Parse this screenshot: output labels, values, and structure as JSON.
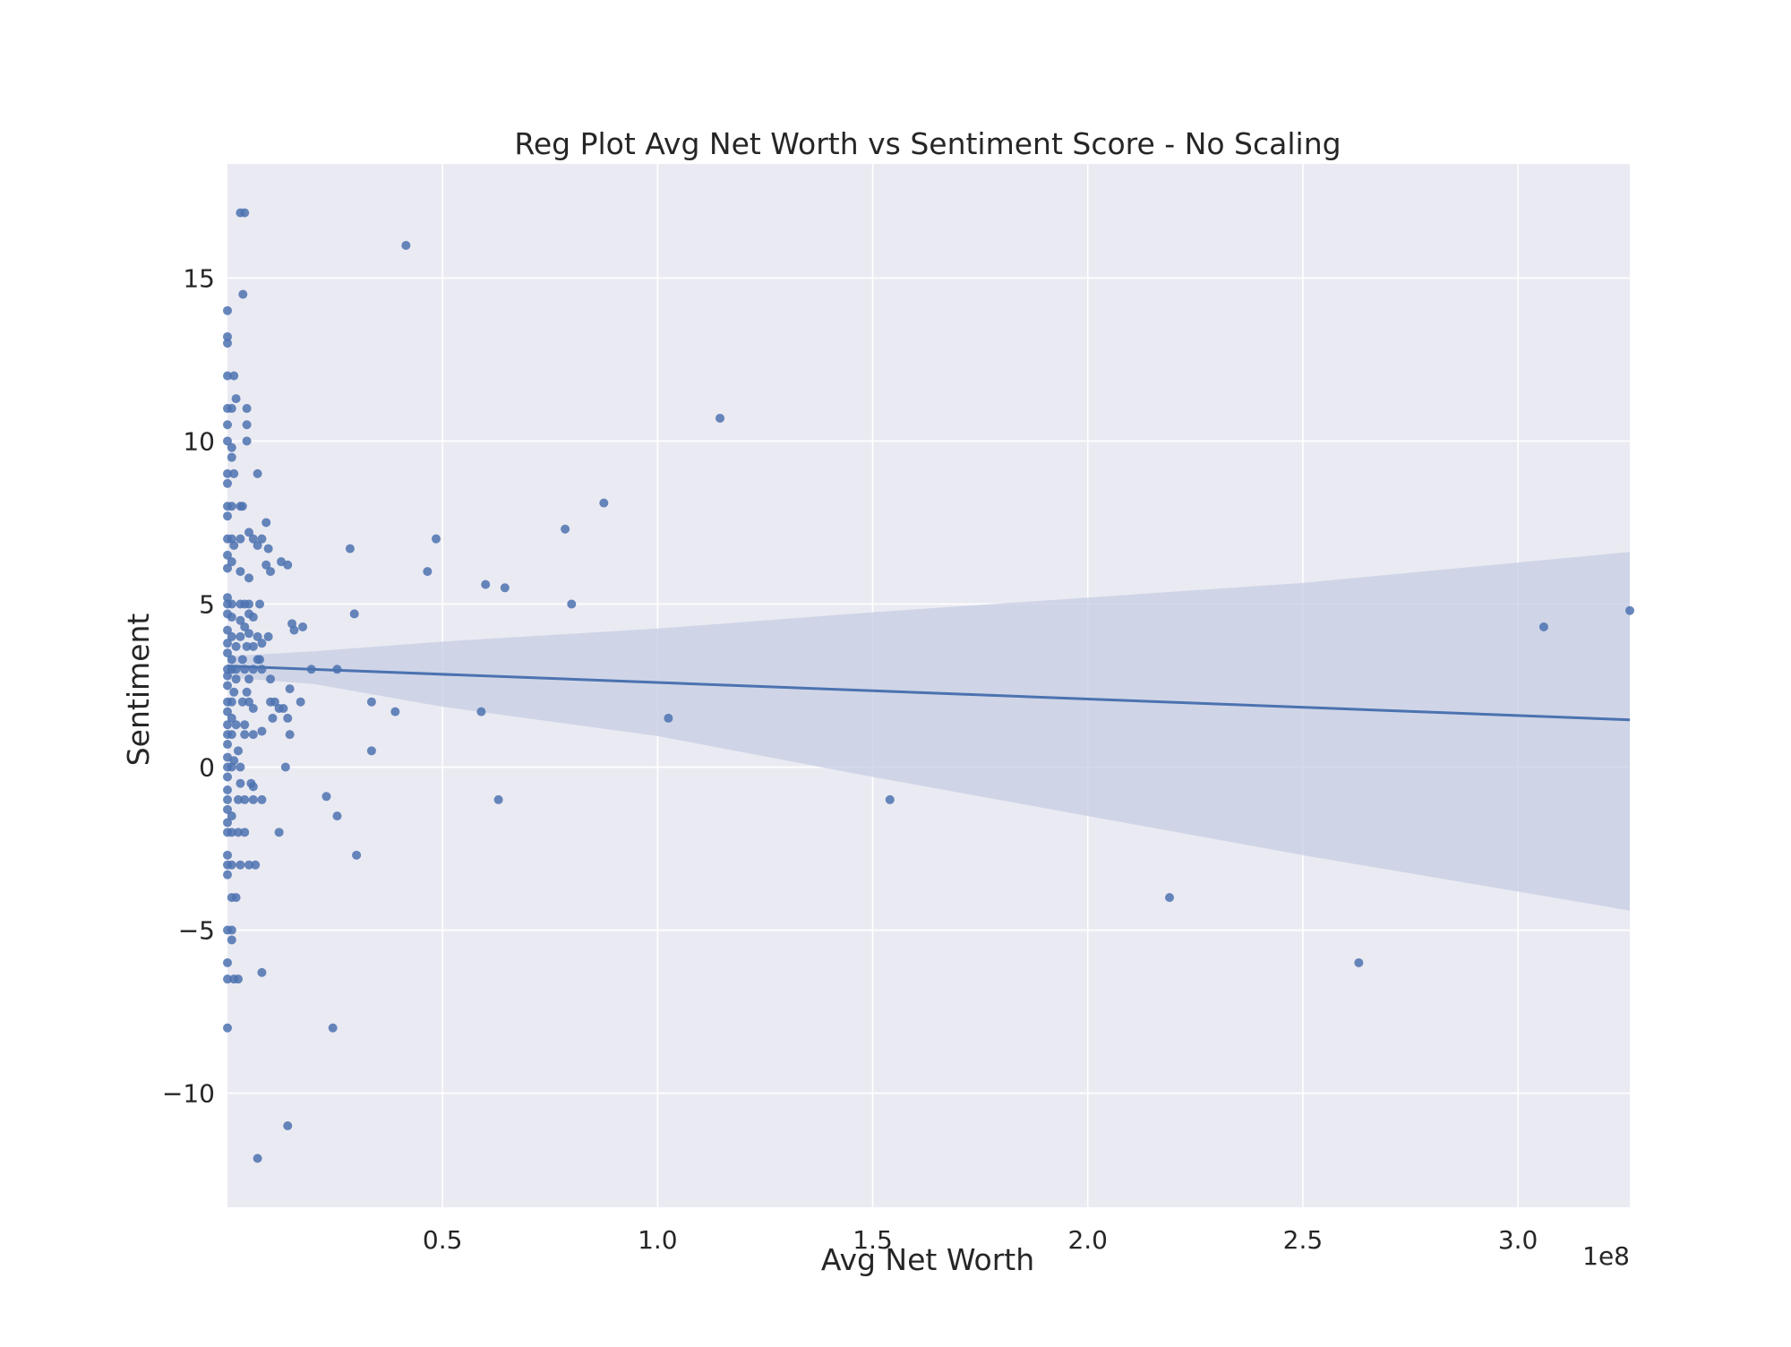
{
  "chart_data": {
    "type": "scatter",
    "title": "Reg Plot Avg Net Worth vs Sentiment Score - No Scaling",
    "xlabel": "Avg Net Worth",
    "ylabel": "Sentiment",
    "x_offset_label": "1e8",
    "xlim": [
      0,
      326000000
    ],
    "ylim": [
      -13.5,
      18.5
    ],
    "grid": true,
    "x_ticks": [
      {
        "value": 50000000,
        "label": "0.5"
      },
      {
        "value": 100000000,
        "label": "1.0"
      },
      {
        "value": 150000000,
        "label": "1.5"
      },
      {
        "value": 200000000,
        "label": "2.0"
      },
      {
        "value": 250000000,
        "label": "2.5"
      },
      {
        "value": 300000000,
        "label": "3.0"
      }
    ],
    "y_ticks": [
      {
        "value": 15,
        "label": "15"
      },
      {
        "value": 10,
        "label": "10"
      },
      {
        "value": 5,
        "label": "5"
      },
      {
        "value": 0,
        "label": "0"
      },
      {
        "value": -5,
        "label": "−5"
      },
      {
        "value": -10,
        "label": "−10"
      }
    ],
    "colors": {
      "background": "#eaeaf2",
      "grid": "#ffffff",
      "point": "#4c72b0",
      "line": "#4c72b0",
      "band": "#c6cde3"
    },
    "regression": {
      "x": [
        0,
        326000000
      ],
      "y": [
        3.1,
        1.45
      ],
      "ci_upper": [
        [
          0,
          3.4
        ],
        [
          20000000,
          3.55
        ],
        [
          50000000,
          3.85
        ],
        [
          100000000,
          4.25
        ],
        [
          150000000,
          4.75
        ],
        [
          200000000,
          5.2
        ],
        [
          250000000,
          5.65
        ],
        [
          326000000,
          6.6
        ]
      ],
      "ci_lower": [
        [
          0,
          2.75
        ],
        [
          20000000,
          2.55
        ],
        [
          50000000,
          1.85
        ],
        [
          100000000,
          0.95
        ],
        [
          150000000,
          -0.3
        ],
        [
          200000000,
          -1.5
        ],
        [
          250000000,
          -2.7
        ],
        [
          326000000,
          -4.4
        ]
      ]
    },
    "points": [
      [
        3000000,
        17
      ],
      [
        4000000,
        17
      ],
      [
        41500000,
        16
      ],
      [
        3600000,
        14.5
      ],
      [
        0,
        14
      ],
      [
        0,
        13.2
      ],
      [
        0,
        13
      ],
      [
        0,
        12
      ],
      [
        1500000,
        12
      ],
      [
        2000000,
        11.3
      ],
      [
        0,
        11
      ],
      [
        1000000,
        11
      ],
      [
        4500000,
        11
      ],
      [
        0,
        10.5
      ],
      [
        4500000,
        10.5
      ],
      [
        0,
        10
      ],
      [
        4500000,
        10
      ],
      [
        1000000,
        9.8
      ],
      [
        1000000,
        9.5
      ],
      [
        0,
        9
      ],
      [
        1500000,
        9
      ],
      [
        7000000,
        9
      ],
      [
        0,
        8.7
      ],
      [
        0,
        8
      ],
      [
        1000000,
        8
      ],
      [
        3000000,
        8
      ],
      [
        3500000,
        8
      ],
      [
        0,
        7.7
      ],
      [
        9000000,
        7.5
      ],
      [
        5000000,
        7.2
      ],
      [
        0,
        7
      ],
      [
        1000000,
        7
      ],
      [
        3000000,
        7
      ],
      [
        6000000,
        7
      ],
      [
        8000000,
        7
      ],
      [
        7000000,
        6.8
      ],
      [
        9500000,
        6.7
      ],
      [
        1500000,
        6.8
      ],
      [
        0,
        6.5
      ],
      [
        1000000,
        6.3
      ],
      [
        0,
        6.1
      ],
      [
        12500000,
        6.3
      ],
      [
        14000000,
        6.2
      ],
      [
        9000000,
        6.2
      ],
      [
        3000000,
        6
      ],
      [
        10000000,
        6
      ],
      [
        5000000,
        5.8
      ],
      [
        0,
        5.2
      ],
      [
        0,
        5
      ],
      [
        1000000,
        5
      ],
      [
        3000000,
        5
      ],
      [
        4000000,
        5
      ],
      [
        5000000,
        5
      ],
      [
        7500000,
        5
      ],
      [
        0,
        4.7
      ],
      [
        1000000,
        4.6
      ],
      [
        5000000,
        4.7
      ],
      [
        3000000,
        4.5
      ],
      [
        6000000,
        4.6
      ],
      [
        4000000,
        4.3
      ],
      [
        15000000,
        4.4
      ],
      [
        17500000,
        4.3
      ],
      [
        15500000,
        4.2
      ],
      [
        5000000,
        4.1
      ],
      [
        0,
        4.2
      ],
      [
        1000000,
        4
      ],
      [
        3000000,
        4
      ],
      [
        7000000,
        4
      ],
      [
        9500000,
        4
      ],
      [
        8000000,
        3.8
      ],
      [
        0,
        3.8
      ],
      [
        2000000,
        3.7
      ],
      [
        4500000,
        3.7
      ],
      [
        6000000,
        3.7
      ],
      [
        0,
        3.5
      ],
      [
        1000000,
        3.3
      ],
      [
        3500000,
        3.3
      ],
      [
        7000000,
        3.3
      ],
      [
        7500000,
        3.3
      ],
      [
        0,
        3
      ],
      [
        1000000,
        3
      ],
      [
        2000000,
        3
      ],
      [
        4000000,
        3
      ],
      [
        6000000,
        3
      ],
      [
        8000000,
        3
      ],
      [
        19500000,
        3
      ],
      [
        25500000,
        3
      ],
      [
        0,
        2.8
      ],
      [
        2000000,
        2.7
      ],
      [
        5000000,
        2.7
      ],
      [
        10000000,
        2.7
      ],
      [
        0,
        2.5
      ],
      [
        1500000,
        2.3
      ],
      [
        4500000,
        2.3
      ],
      [
        14500000,
        2.4
      ],
      [
        0,
        2
      ],
      [
        1000000,
        2
      ],
      [
        3500000,
        2
      ],
      [
        5000000,
        2
      ],
      [
        10000000,
        2
      ],
      [
        11000000,
        2
      ],
      [
        17000000,
        2
      ],
      [
        33500000,
        2
      ],
      [
        12000000,
        1.8
      ],
      [
        13000000,
        1.8
      ],
      [
        6000000,
        1.8
      ],
      [
        0,
        1.7
      ],
      [
        39000000,
        1.7
      ],
      [
        59000000,
        1.7
      ],
      [
        1000000,
        1.5
      ],
      [
        10500000,
        1.5
      ],
      [
        14000000,
        1.5
      ],
      [
        102500000,
        1.5
      ],
      [
        0,
        1.3
      ],
      [
        2000000,
        1.3
      ],
      [
        4000000,
        1.3
      ],
      [
        8000000,
        1.1
      ],
      [
        0,
        1
      ],
      [
        1000000,
        1
      ],
      [
        4000000,
        1
      ],
      [
        6000000,
        1
      ],
      [
        14500000,
        1
      ],
      [
        0,
        0.7
      ],
      [
        2500000,
        0.5
      ],
      [
        33500000,
        0.5
      ],
      [
        0,
        0.3
      ],
      [
        1500000,
        0.2
      ],
      [
        0,
        0
      ],
      [
        1000000,
        0
      ],
      [
        3000000,
        0
      ],
      [
        13500000,
        0
      ],
      [
        0,
        -0.3
      ],
      [
        3000000,
        -0.5
      ],
      [
        5500000,
        -0.5
      ],
      [
        6000000,
        -0.6
      ],
      [
        0,
        -0.7
      ],
      [
        23000000,
        -0.9
      ],
      [
        0,
        -1
      ],
      [
        2500000,
        -1
      ],
      [
        4000000,
        -1
      ],
      [
        6000000,
        -1
      ],
      [
        8000000,
        -1
      ],
      [
        63000000,
        -1
      ],
      [
        154000000,
        -1
      ],
      [
        0,
        -1.3
      ],
      [
        1000000,
        -1.5
      ],
      [
        25500000,
        -1.5
      ],
      [
        0,
        -1.7
      ],
      [
        0,
        -2
      ],
      [
        1000000,
        -2
      ],
      [
        2500000,
        -2
      ],
      [
        4000000,
        -2
      ],
      [
        12000000,
        -2
      ],
      [
        0,
        -2.7
      ],
      [
        30000000,
        -2.7
      ],
      [
        0,
        -3
      ],
      [
        1000000,
        -3
      ],
      [
        3000000,
        -3
      ],
      [
        5000000,
        -3
      ],
      [
        6500000,
        -3
      ],
      [
        0,
        -3.3
      ],
      [
        1000000,
        -4
      ],
      [
        2000000,
        -4
      ],
      [
        219000000,
        -4
      ],
      [
        0,
        -5
      ],
      [
        1000000,
        -5
      ],
      [
        1000000,
        -5.3
      ],
      [
        0,
        -6
      ],
      [
        263000000,
        -6
      ],
      [
        8000000,
        -6.3
      ],
      [
        0,
        -6.5
      ],
      [
        1500000,
        -6.5
      ],
      [
        2500000,
        -6.5
      ],
      [
        0,
        -8
      ],
      [
        24500000,
        -8
      ],
      [
        14000000,
        -11
      ],
      [
        7000000,
        -12
      ],
      [
        28500000,
        6.7
      ],
      [
        48500000,
        7
      ],
      [
        46500000,
        6
      ],
      [
        29500000,
        4.7
      ],
      [
        60000000,
        5.6
      ],
      [
        64500000,
        5.5
      ],
      [
        78500000,
        7.3
      ],
      [
        87500000,
        8.1
      ],
      [
        80000000,
        5
      ],
      [
        114500000,
        10.7
      ],
      [
        306000000,
        4.3
      ],
      [
        326000000,
        4.8
      ]
    ]
  }
}
